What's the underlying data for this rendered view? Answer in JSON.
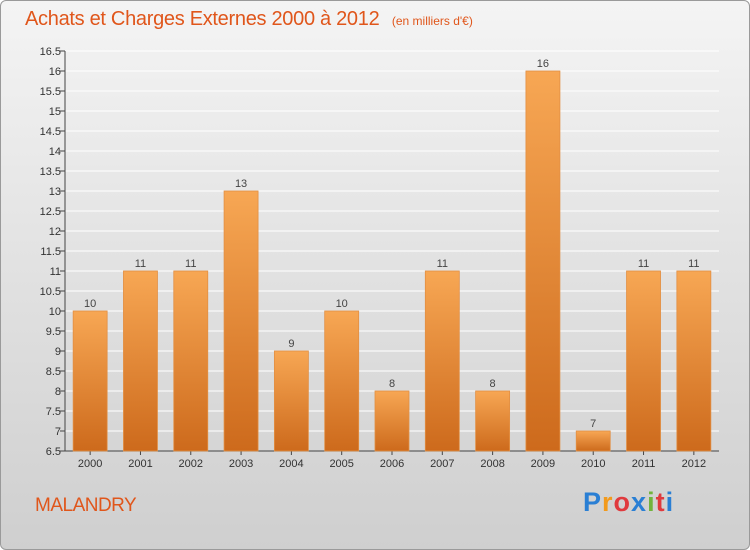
{
  "title": "Achats et Charges Externes 2000 à 2012",
  "unit_note": "(en milliers d'€)",
  "commune": "MALANDRY",
  "logo": {
    "letters": [
      "P",
      "r",
      "o",
      "x",
      "i",
      "t",
      "i"
    ],
    "colors": [
      "#2a7fd4",
      "#f29a1c",
      "#e03a3e",
      "#2a7fd4",
      "#71b33c",
      "#e03a3e",
      "#2a7fd4"
    ]
  },
  "colors": {
    "bar_light": "#f7a754",
    "bar_dark": "#cd6a1c",
    "accent": "#e0561b"
  },
  "chart_data": {
    "type": "bar",
    "categories": [
      "2000",
      "2001",
      "2002",
      "2003",
      "2004",
      "2005",
      "2006",
      "2007",
      "2008",
      "2009",
      "2010",
      "2011",
      "2012"
    ],
    "values": [
      10,
      11,
      11,
      13,
      9,
      10,
      8,
      11,
      8,
      16,
      7,
      11,
      11
    ],
    "value_labels": [
      "10",
      "11",
      "11",
      "13",
      "9",
      "10",
      "8",
      "11",
      "8",
      "16",
      "7",
      "11",
      "11"
    ],
    "ylim": [
      6.5,
      16.5
    ],
    "yticks": [
      6.5,
      7,
      7.5,
      8,
      8.5,
      9,
      9.5,
      10,
      10.5,
      11,
      11.5,
      12,
      12.5,
      13,
      13.5,
      14,
      14.5,
      15,
      15.5,
      16,
      16.5
    ],
    "ytick_labels": [
      "6.5",
      "7",
      "7.5",
      "8",
      "8.5",
      "9",
      "9.5",
      "10",
      "10.5",
      "11",
      "11.5",
      "12",
      "12.5",
      "13",
      "13.5",
      "14",
      "14.5",
      "15",
      "15.5",
      "16",
      "16.5"
    ],
    "grid": true,
    "legend": "none"
  }
}
